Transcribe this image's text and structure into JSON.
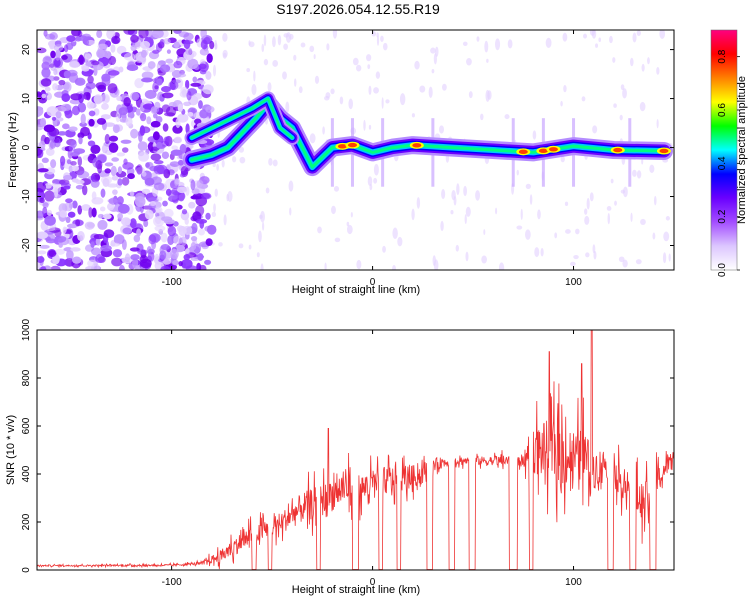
{
  "title": "S197.2026.054.12.55.R19",
  "chart_data": [
    {
      "type": "heatmap",
      "panel": "spectrogram",
      "xlabel": "Height of straight line (km)",
      "ylabel": "Frequency (Hz)",
      "xlim": [
        -167,
        150
      ],
      "ylim": [
        -25,
        24
      ],
      "xticks": [
        -100,
        0,
        100
      ],
      "yticks": [
        -20,
        -10,
        0,
        10,
        20
      ],
      "ridge": [
        {
          "x": -90,
          "y": -2.5
        },
        {
          "x": -80,
          "y": -1.5
        },
        {
          "x": -72,
          "y": 0
        },
        {
          "x": -65,
          "y": 3
        },
        {
          "x": -58,
          "y": 6
        },
        {
          "x": -52,
          "y": 9
        },
        {
          "x": -46,
          "y": 6
        },
        {
          "x": -40,
          "y": 4
        },
        {
          "x": -35,
          "y": 0
        },
        {
          "x": -30,
          "y": -4
        },
        {
          "x": -25,
          "y": -2
        },
        {
          "x": -20,
          "y": 0
        },
        {
          "x": -10,
          "y": 0.5
        },
        {
          "x": 0,
          "y": -1
        },
        {
          "x": 10,
          "y": 0
        },
        {
          "x": 20,
          "y": 0.5
        },
        {
          "x": 40,
          "y": 0
        },
        {
          "x": 60,
          "y": -0.5
        },
        {
          "x": 80,
          "y": -1
        },
        {
          "x": 100,
          "y": 0.3
        },
        {
          "x": 120,
          "y": -0.5
        },
        {
          "x": 145,
          "y": -0.7
        }
      ],
      "upper_branch": [
        {
          "x": -90,
          "y": 2
        },
        {
          "x": -80,
          "y": 4
        },
        {
          "x": -70,
          "y": 6
        },
        {
          "x": -60,
          "y": 8
        },
        {
          "x": -52,
          "y": 10
        },
        {
          "x": -46,
          "y": 4
        },
        {
          "x": -40,
          "y": 2
        }
      ],
      "hot_spots": [
        -15,
        -10,
        22,
        75,
        85,
        90,
        122,
        145
      ],
      "colorbar": {
        "label": "Normalized spectral amplitude",
        "range": [
          0.0,
          0.9
        ],
        "ticks": [
          "0.0",
          "0.2",
          "0.4",
          "0.6",
          "0.8"
        ],
        "colors": [
          "#ffffff",
          "#dcc6ff",
          "#a34dff",
          "#6a00ff",
          "#0000ff",
          "#00ffff",
          "#00ff00",
          "#ffff00",
          "#ff8000",
          "#ff0000",
          "#ff0080"
        ]
      }
    },
    {
      "type": "line",
      "panel": "snr",
      "xlabel": "Height of straight line (km)",
      "ylabel": "SNR (10 * v/v)",
      "xlim": [
        -167,
        150
      ],
      "ylim": [
        0,
        1000
      ],
      "xticks": [
        -100,
        0,
        100
      ],
      "yticks": [
        0,
        200,
        400,
        600,
        800,
        1000
      ],
      "color": "#ee3333",
      "series": [
        {
          "name": "SNR",
          "envelope": {
            "x": [
              -167,
              -100,
              -85,
              -75,
              -65,
              -55,
              -45,
              -35,
              -25,
              -15,
              -5,
              5,
              15,
              25,
              30,
              40,
              60,
              75,
              80,
              90,
              95,
              100,
              105,
              110,
              115,
              125,
              135,
              150
            ],
            "y": [
              18,
              20,
              28,
              60,
              120,
              160,
              200,
              260,
              290,
              340,
              340,
              370,
              380,
              400,
              440,
              455,
              455,
              455,
              500,
              500,
              480,
              470,
              470,
              420,
              450,
              360,
              280,
              480
            ],
            "amp": [
              6,
              8,
              12,
              60,
              90,
              90,
              100,
              140,
              150,
              160,
              130,
              130,
              120,
              90,
              60,
              40,
              40,
              60,
              220,
              300,
              300,
              260,
              260,
              200,
              120,
              150,
              180,
              60
            ]
          },
          "dropouts": [
            [
              -60,
              -58
            ],
            [
              -52,
              -50
            ],
            [
              -28,
              -26
            ],
            [
              -10,
              -7
            ],
            [
              3,
              5
            ],
            [
              12,
              14
            ],
            [
              27,
              30
            ],
            [
              38,
              41
            ],
            [
              48,
              51
            ],
            [
              68,
              72
            ],
            [
              78,
              80
            ],
            [
              117,
              120
            ],
            [
              128,
              131
            ],
            [
              138,
              141
            ]
          ],
          "peaks": [
            {
              "x": -22,
              "y": 590
            },
            {
              "x": 88,
              "y": 910
            },
            {
              "x": 104,
              "y": 860
            },
            {
              "x": 109,
              "y": 1000
            }
          ]
        }
      ]
    }
  ]
}
